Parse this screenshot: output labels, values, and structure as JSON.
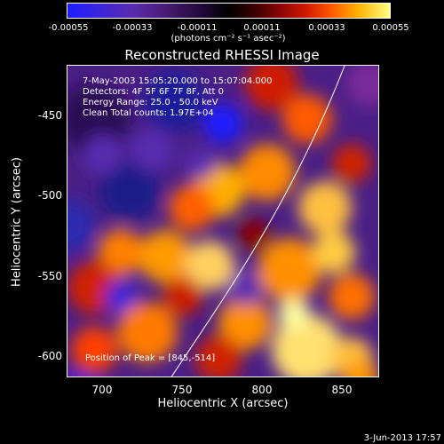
{
  "colorbar": {
    "ticks": [
      "-0.00055",
      "-0.00033",
      "-0.00011",
      "0.00011",
      "0.00033",
      "0.00055"
    ],
    "unit": "(photons cm⁻² s⁻¹ asec⁻²)"
  },
  "title": "Reconstructed RHESSI Image",
  "annotations": {
    "time": "7-May-2003 15:05:20.000 to 15:07:04.000",
    "detectors": "Detectors: 4F 5F 6F 7F 8F, Att 0",
    "energy": "Energy Range: 25.0 - 50.0 keV",
    "clean": "Clean    Total counts: 1.97E+04",
    "peak": "Position of Peak = [845,-514]"
  },
  "axes": {
    "xlabel": "Heliocentric X (arcsec)",
    "ylabel": "Heliocentric Y (arcsec)",
    "xticks": [
      "700",
      "750",
      "800",
      "850"
    ],
    "yticks": [
      "-450",
      "-500",
      "-550",
      "-600"
    ]
  },
  "footer": "3-Jun-2013 17:57"
}
